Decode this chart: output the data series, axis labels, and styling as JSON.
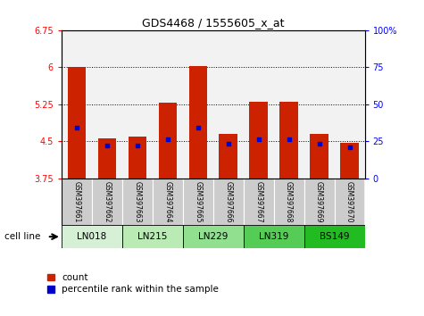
{
  "title": "GDS4468 / 1555605_x_at",
  "samples": [
    "GSM397661",
    "GSM397662",
    "GSM397663",
    "GSM397664",
    "GSM397665",
    "GSM397666",
    "GSM397667",
    "GSM397668",
    "GSM397669",
    "GSM397670"
  ],
  "count_values": [
    6.0,
    4.57,
    4.59,
    5.28,
    6.02,
    4.65,
    5.3,
    5.3,
    4.65,
    4.48
  ],
  "percentile_values": [
    4.78,
    4.41,
    4.41,
    4.55,
    4.78,
    4.45,
    4.55,
    4.55,
    4.45,
    4.38
  ],
  "cell_lines": [
    "LN018",
    "LN215",
    "LN229",
    "LN319",
    "BS149"
  ],
  "cell_line_groups": [
    2,
    2,
    2,
    2,
    2
  ],
  "cell_line_colors": [
    "#d5f0d5",
    "#bbebb5",
    "#90e090",
    "#55cc55",
    "#22bb22"
  ],
  "ylim_left": [
    3.75,
    6.75
  ],
  "ylim_right": [
    0,
    100
  ],
  "yticks_left": [
    3.75,
    4.5,
    5.25,
    6.0,
    6.75
  ],
  "ytick_labels_left": [
    "3.75",
    "4.5",
    "5.25",
    "6",
    "6.75"
  ],
  "yticks_right": [
    0,
    25,
    50,
    75,
    100
  ],
  "ytick_labels_right": [
    "0",
    "25",
    "50",
    "75",
    "100%"
  ],
  "bar_color": "#cc2200",
  "dot_color": "#0000cc",
  "bar_bottom": 3.75,
  "grid_lines": [
    6.0,
    5.25,
    4.5
  ],
  "sample_bg_color": "#cccccc",
  "legend_count_label": "count",
  "legend_percentile_label": "percentile rank within the sample",
  "cell_line_label": "cell line"
}
